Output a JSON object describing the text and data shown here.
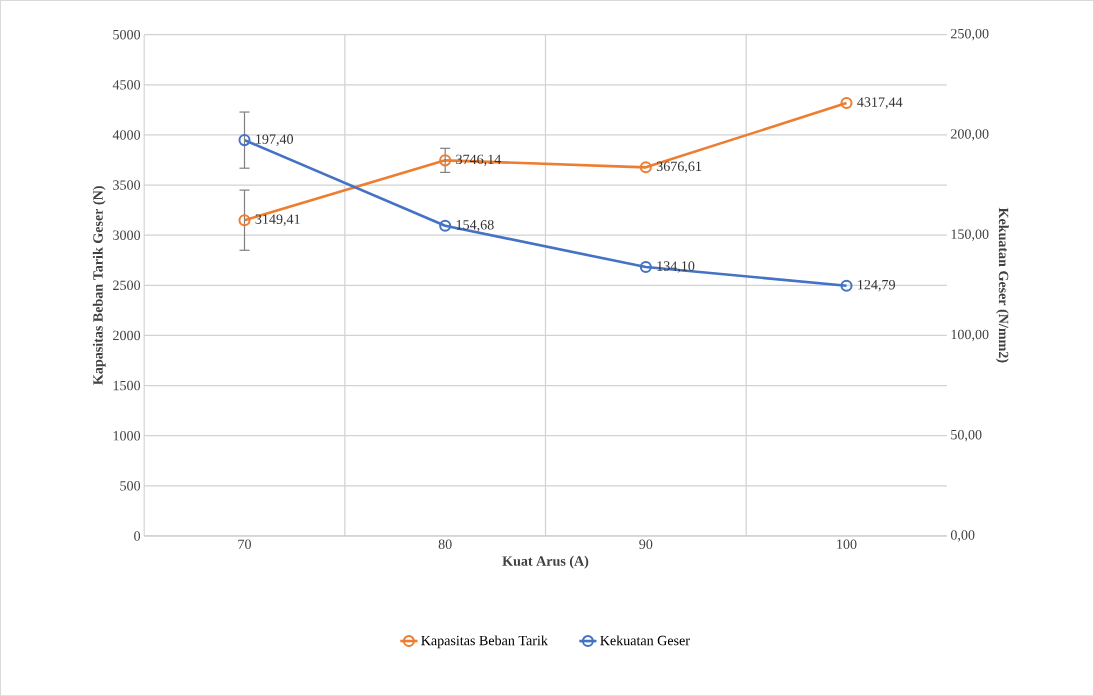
{
  "chart_data": {
    "type": "line",
    "xlabel": "Kuat Arus (A)",
    "ylabel": "Kapasitas Beban Tarik Geser (N)",
    "y2label": "Kekuatan Geser (N/mm2)",
    "categories": [
      "70",
      "80",
      "90",
      "100"
    ],
    "series": [
      {
        "name": "Kapasitas Beban Tarik",
        "color": "#ed7d31",
        "values": [
          3149.41,
          3746.14,
          3676.61,
          4317.44
        ],
        "errors": [
          300,
          120,
          null,
          null
        ],
        "value_labels": [
          "3149,41",
          "3746,14",
          "3676,61",
          "4317,44"
        ]
      },
      {
        "name": "Kekuatan Geser",
        "color": "#4472c4",
        "axis": "y2",
        "values": [
          197.4,
          154.68,
          134.1,
          124.79
        ],
        "errors": [
          14,
          null,
          null,
          null
        ],
        "value_labels": [
          "197,40",
          "154,68",
          "134,10",
          "124,79"
        ]
      }
    ],
    "ylim": [
      0,
      5000
    ],
    "yticks": [
      0,
      500,
      1000,
      1500,
      2000,
      2500,
      3000,
      3500,
      4000,
      4500,
      5000
    ],
    "y2lim": [
      0,
      250
    ],
    "y2ticks": [
      {
        "value": 0,
        "label": "0,00"
      },
      {
        "value": 50,
        "label": "50,00"
      },
      {
        "value": 100,
        "label": "100,00"
      },
      {
        "value": 150,
        "label": "150,00"
      },
      {
        "value": 200,
        "label": "200,00"
      },
      {
        "value": 250,
        "label": "250,00"
      }
    ],
    "grid": true,
    "legend": "bottom",
    "marker": "circle",
    "line_style": "solid"
  }
}
